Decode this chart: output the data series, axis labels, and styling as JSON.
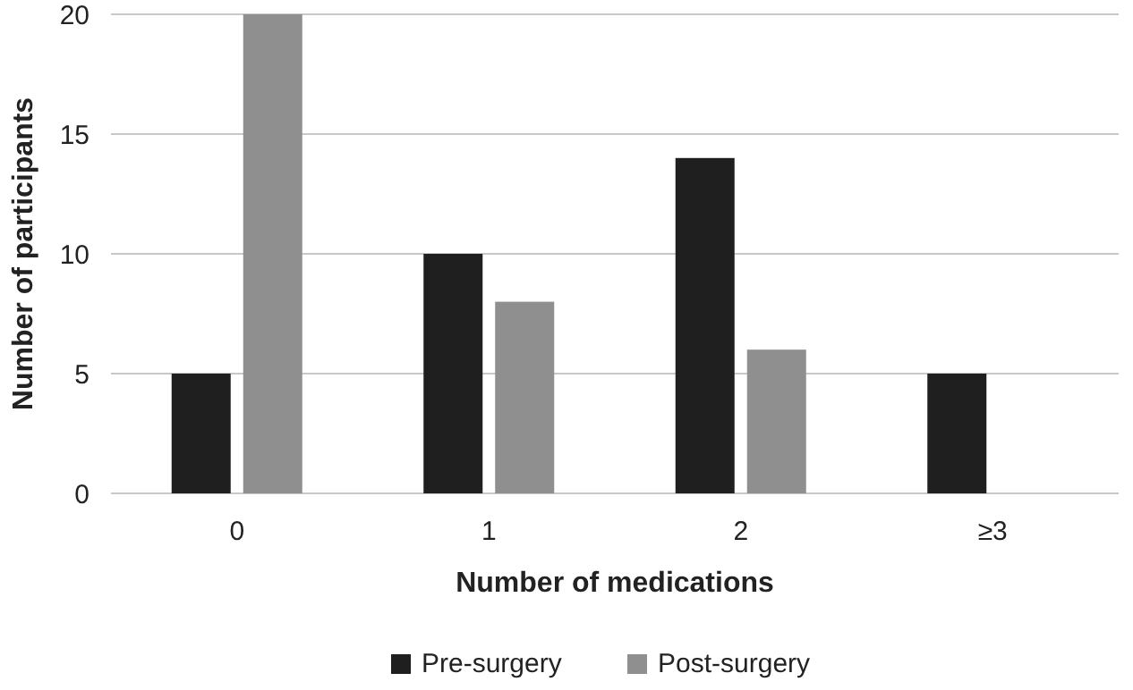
{
  "chart_data": {
    "type": "bar",
    "xlabel": "Number of medications",
    "ylabel": "Number of participants",
    "categories": [
      "0",
      "1",
      "2",
      "≥3"
    ],
    "series": [
      {
        "name": "Pre-surgery",
        "color": "#1f1f1f",
        "values": [
          5,
          10,
          14,
          5
        ]
      },
      {
        "name": "Post-surgery",
        "color": "#8f8f8f",
        "values": [
          20,
          8,
          6,
          0
        ]
      }
    ],
    "ylim": [
      0,
      20
    ],
    "yticks": [
      0,
      5,
      10,
      15,
      20
    ],
    "grid": "y",
    "legend": "bottom"
  }
}
